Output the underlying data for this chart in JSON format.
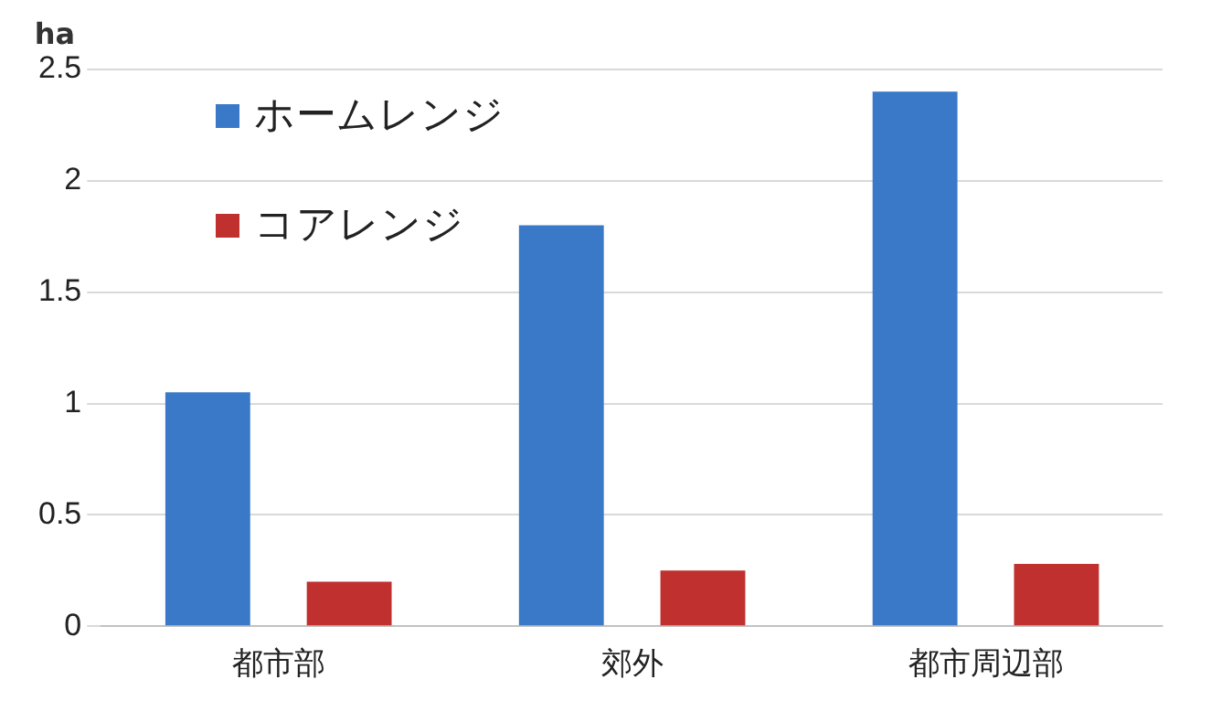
{
  "chart_data": {
    "type": "bar",
    "ylabel": "ha",
    "categories": [
      "都市部",
      "郊外",
      "都市周辺部"
    ],
    "series": [
      {
        "name": "ホームレンジ",
        "color": "#3a78c8",
        "values": [
          1.05,
          1.8,
          2.4
        ]
      },
      {
        "name": "コアレンジ",
        "color": "#c0302f",
        "values": [
          0.2,
          0.25,
          0.28
        ]
      }
    ],
    "ylim": [
      0,
      2.5
    ],
    "yticks": [
      0,
      0.5,
      1,
      1.5,
      2,
      2.5
    ],
    "grid": "y",
    "legend": "top left"
  }
}
